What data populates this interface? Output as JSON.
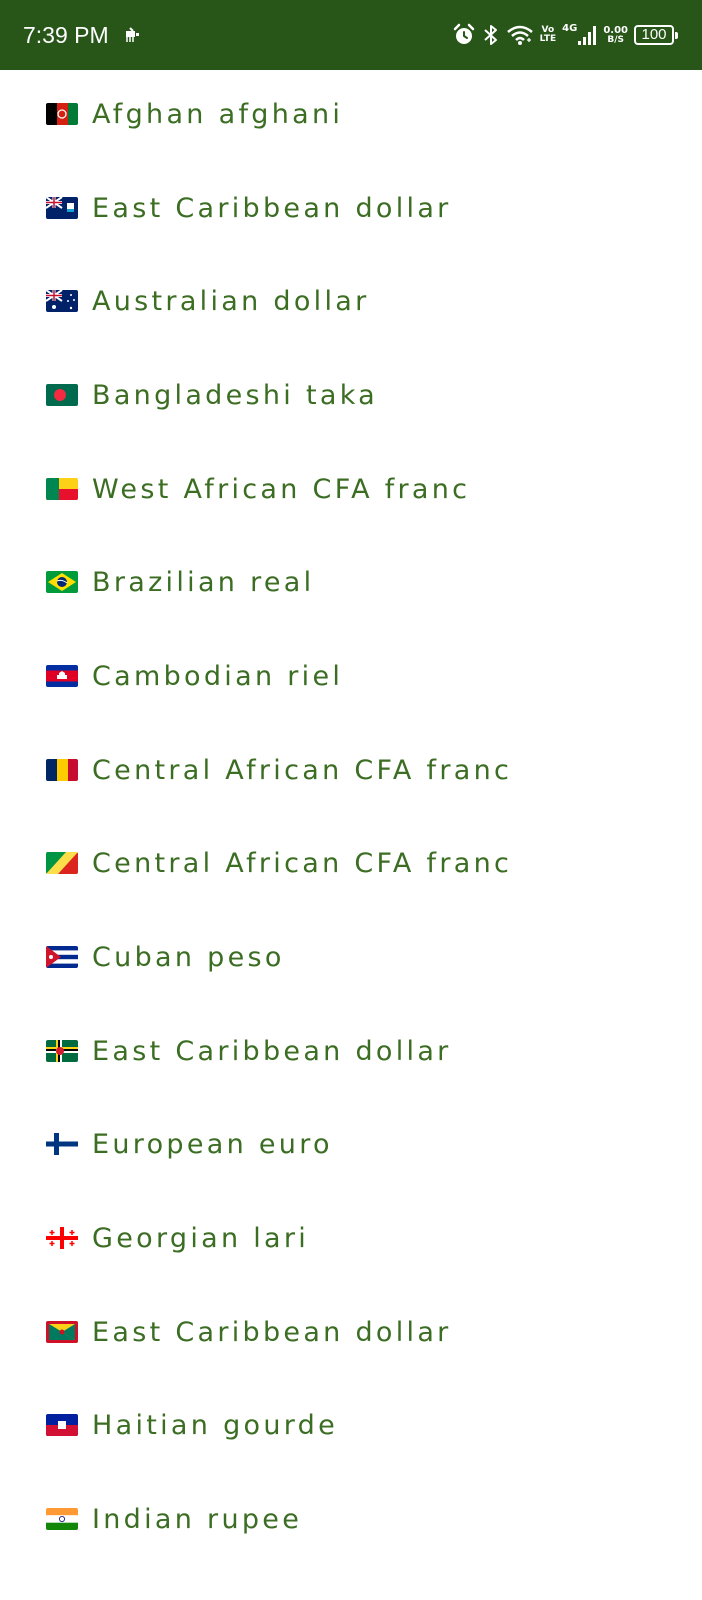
{
  "status_bar": {
    "time": "7:39 PM",
    "network_type": "4G",
    "volte_top": "Vo",
    "volte_bottom": "LTE",
    "speed_value": "0.00",
    "speed_unit": "B/S",
    "battery_level": "100",
    "background_color": "#275618"
  },
  "currency_list": {
    "text_color": "#3b6d23",
    "items": [
      {
        "label": "Afghan afghani",
        "flag": "afghanistan-flag-icon"
      },
      {
        "label": "East Caribbean dollar",
        "flag": "anguilla-flag-icon"
      },
      {
        "label": "Australian dollar",
        "flag": "australia-flag-icon"
      },
      {
        "label": "Bangladeshi taka",
        "flag": "bangladesh-flag-icon"
      },
      {
        "label": "West African CFA franc",
        "flag": "benin-flag-icon"
      },
      {
        "label": "Brazilian real",
        "flag": "brazil-flag-icon"
      },
      {
        "label": "Cambodian riel",
        "flag": "cambodia-flag-icon"
      },
      {
        "label": "Central African CFA franc",
        "flag": "chad-flag-icon"
      },
      {
        "label": "Central African CFA franc",
        "flag": "congo-flag-icon"
      },
      {
        "label": "Cuban peso",
        "flag": "cuba-flag-icon"
      },
      {
        "label": "East Caribbean dollar",
        "flag": "dominica-flag-icon"
      },
      {
        "label": "European euro",
        "flag": "finland-flag-icon"
      },
      {
        "label": "Georgian lari",
        "flag": "georgia-flag-icon"
      },
      {
        "label": "East Caribbean dollar",
        "flag": "grenada-flag-icon"
      },
      {
        "label": "Haitian gourde",
        "flag": "haiti-flag-icon"
      },
      {
        "label": "Indian rupee",
        "flag": "india-flag-icon"
      }
    ]
  }
}
